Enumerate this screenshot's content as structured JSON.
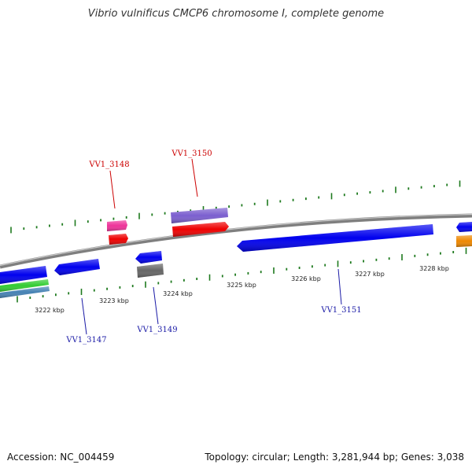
{
  "header": {
    "title": "Vibrio vulnificus CMCP6 chromosome I, complete genome"
  },
  "footer": {
    "accession": "Accession: NC_004459",
    "summary": "Topology: circular; Length: 3,281,944 bp; Genes: 3,038"
  },
  "colors": {
    "backbone": "#888888",
    "tick": "#1e7a1e",
    "label_forward": "#cc0000",
    "label_reverse": "#1a1aa6"
  },
  "ruler": [
    {
      "label": "3222 kbp"
    },
    {
      "label": "3223 kbp"
    },
    {
      "label": "3224 kbp"
    },
    {
      "label": "3225 kbp"
    },
    {
      "label": "3226 kbp"
    },
    {
      "label": "3227 kbp"
    },
    {
      "label": "3228 kbp"
    }
  ],
  "gene_labels": [
    {
      "name": "VV1_3148",
      "strand": "forward"
    },
    {
      "name": "VV1_3150",
      "strand": "forward"
    },
    {
      "name": "VV1_3147",
      "strand": "reverse"
    },
    {
      "name": "VV1_3149",
      "strand": "reverse"
    },
    {
      "name": "VV1_3151",
      "strand": "reverse"
    }
  ],
  "features": [
    {
      "id": "f-3148-pink",
      "color": "#ee3399",
      "strand": "forward"
    },
    {
      "id": "f-3148-red",
      "color": "#ee0000",
      "strand": "forward"
    },
    {
      "id": "f-3150-purple",
      "color": "#7b5fcf",
      "strand": "forward"
    },
    {
      "id": "f-3150-red",
      "color": "#ee0000",
      "strand": "forward"
    },
    {
      "id": "f-left-blue",
      "color": "#0000ee",
      "strand": "reverse"
    },
    {
      "id": "f-left-green",
      "color": "#33cc33",
      "strand": "reverse"
    },
    {
      "id": "f-left-steel",
      "color": "#4682b4",
      "strand": "reverse"
    },
    {
      "id": "f-3147-blue",
      "color": "#0000ee",
      "strand": "reverse"
    },
    {
      "id": "f-3149-blue",
      "color": "#0000ee",
      "strand": "reverse"
    },
    {
      "id": "f-3149-gray",
      "color": "#666666",
      "strand": "reverse"
    },
    {
      "id": "f-3151-blue",
      "color": "#0000ee",
      "strand": "reverse"
    },
    {
      "id": "f-right-blue",
      "color": "#0000ee",
      "strand": "forward"
    },
    {
      "id": "f-right-orange",
      "color": "#ee8800",
      "strand": "forward"
    }
  ]
}
